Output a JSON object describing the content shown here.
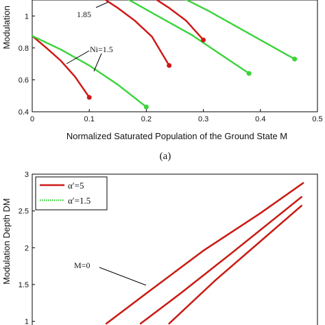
{
  "chart_data": [
    {
      "type": "line",
      "panel_label": "(a)",
      "xlabel": "Normalized Saturated Population of the Ground State M",
      "ylabel": "Modulation",
      "xlim": [
        0,
        0.5
      ],
      "ylim": [
        0.4,
        1.1
      ],
      "xticks": [
        "0",
        "0.1",
        "0.2",
        "0.3",
        "0.4",
        "0.5"
      ],
      "yticks": [
        "0.4",
        "0.6",
        "0.8",
        "1"
      ],
      "xtick_values": [
        0,
        0.1,
        0.2,
        0.3,
        0.4,
        0.5
      ],
      "ytick_values": [
        0.4,
        0.6,
        0.8,
        1.0
      ],
      "grid": false,
      "annotations": [
        "1.85",
        "Ni=1.5"
      ],
      "series": [
        {
          "color": "#d01818",
          "style": "solid",
          "x": [
            0,
            0.025,
            0.05,
            0.075,
            0.1
          ],
          "y": [
            0.875,
            0.8,
            0.72,
            0.62,
            0.49
          ]
        },
        {
          "color": "#d01818",
          "style": "solid",
          "x": [
            0.12,
            0.15,
            0.18,
            0.21,
            0.24
          ],
          "y": [
            1.12,
            1.05,
            0.97,
            0.87,
            0.69
          ]
        },
        {
          "color": "#d01818",
          "style": "solid",
          "x": [
            0.21,
            0.24,
            0.27,
            0.3
          ],
          "y": [
            1.12,
            1.05,
            0.97,
            0.85
          ]
        },
        {
          "color": "#3ad43a",
          "style": "dotted",
          "x": [
            0,
            0.05,
            0.1,
            0.15,
            0.2
          ],
          "y": [
            0.875,
            0.79,
            0.69,
            0.57,
            0.43
          ]
        },
        {
          "color": "#3ad43a",
          "style": "dotted",
          "x": [
            0.16,
            0.22,
            0.28,
            0.33,
            0.38
          ],
          "y": [
            1.12,
            1.0,
            0.88,
            0.76,
            0.64
          ]
        },
        {
          "color": "#3ad43a",
          "style": "dotted",
          "x": [
            0.26,
            0.31,
            0.36,
            0.41,
            0.46
          ],
          "y": [
            1.12,
            1.03,
            0.93,
            0.83,
            0.73
          ]
        }
      ],
      "endpoints": [
        {
          "x": 0.1,
          "y": 0.49,
          "color": "#d01818"
        },
        {
          "x": 0.24,
          "y": 0.69,
          "color": "#d01818"
        },
        {
          "x": 0.3,
          "y": 0.85,
          "color": "#d01818"
        },
        {
          "x": 0.2,
          "y": 0.43,
          "color": "#3ad43a"
        },
        {
          "x": 0.38,
          "y": 0.64,
          "color": "#3ad43a"
        },
        {
          "x": 0.46,
          "y": 0.73,
          "color": "#3ad43a"
        }
      ]
    },
    {
      "type": "line",
      "ylabel": "Modulation Depth DM",
      "xlim": [
        0,
        5
      ],
      "ylim": [
        0.95,
        3.0
      ],
      "yticks": [
        "1",
        "1.5",
        "2",
        "2.5",
        "3"
      ],
      "ytick_values": [
        1,
        1.5,
        2,
        2.5,
        3
      ],
      "grid": false,
      "legend_position": "top-left",
      "legend": [
        {
          "label": "α′=5",
          "color": "#d01818",
          "style": "solid"
        },
        {
          "label": "α′=1.5",
          "color": "#3ad43a",
          "style": "dotted"
        }
      ],
      "annotations": [
        "M=0"
      ],
      "series": [
        {
          "color": "#3ad43a",
          "style": "dotted",
          "x": [
            1.3,
            2,
            3,
            4,
            4.75
          ],
          "y": [
            0.97,
            1.38,
            1.96,
            2.47,
            2.88
          ]
        },
        {
          "color": "#d01818",
          "style": "solid",
          "x": [
            1.3,
            2,
            3,
            4,
            4.75
          ],
          "y": [
            0.97,
            1.38,
            1.96,
            2.47,
            2.88
          ]
        },
        {
          "color": "#3ad43a",
          "style": "dotted",
          "x": [
            1.9,
            2.6,
            3.5,
            4.72
          ],
          "y": [
            0.97,
            1.38,
            1.93,
            2.69
          ]
        },
        {
          "color": "#d01818",
          "style": "solid",
          "x": [
            1.9,
            2.6,
            3.5,
            4.72
          ],
          "y": [
            0.97,
            1.38,
            1.93,
            2.69
          ]
        },
        {
          "color": "#3ad43a",
          "style": "dotted",
          "x": [
            2.4,
            3.2,
            4.72
          ],
          "y": [
            0.97,
            1.55,
            2.57
          ]
        },
        {
          "color": "#d01818",
          "style": "solid",
          "x": [
            2.4,
            3.2,
            4.72
          ],
          "y": [
            0.97,
            1.55,
            2.57
          ]
        }
      ]
    }
  ]
}
